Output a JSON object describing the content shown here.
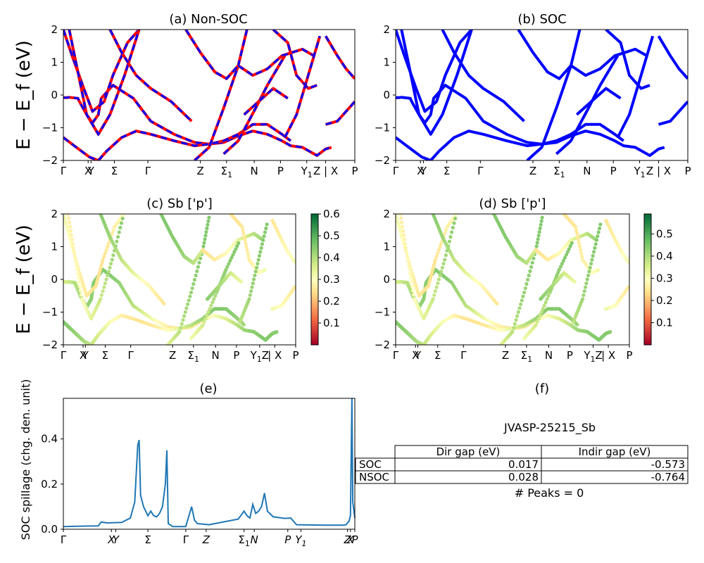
{
  "chart_data": [
    {
      "type": "line",
      "panel": "a",
      "title": "(a) Non-SOC",
      "ylabel": "E − E_f (eV)",
      "ylim": [
        -2,
        2
      ],
      "y_ticks": [
        "2",
        "1",
        "0",
        "−1",
        "−2"
      ],
      "x_ticks": [
        "Γ",
        "X",
        "Y",
        "Σ",
        "Γ",
        "Z",
        "Σ1",
        "N",
        "P",
        "Y1",
        "Z | X",
        "P"
      ],
      "series": [
        {
          "style": "red solid line overlaid with blue dashed line",
          "color": "#ff0000",
          "color2": "#0000ff"
        }
      ],
      "bands": [
        {
          "x": [
            0,
            0.012,
            0.02,
            0.05,
            0.055,
            0.08,
            0.1,
            0.12,
            0.13,
            0.17,
            0.24,
            0.3,
            0.38,
            0.45,
            0.5,
            0.55,
            0.6,
            0.65,
            0.7,
            0.75,
            0.78,
            0.82,
            0.87,
            0.9,
            0.92
          ],
          "y": [
            -0.08,
            -0.08,
            -0.07,
            -0.1,
            -0.2,
            -0.6,
            -0.85,
            -0.6,
            -0.1,
            0.3,
            -0.1,
            -0.8,
            -1.2,
            -1.45,
            -1.5,
            -1.45,
            -1.25,
            -1.1,
            -1.2,
            -1.4,
            -1.55,
            -1.6,
            -1.85,
            -1.65,
            -1.6
          ]
        },
        {
          "x": [
            0,
            0.03,
            0.06,
            0.09,
            0.12,
            0.15,
            0.2,
            0.25,
            0.3,
            0.38,
            0.45,
            0.5,
            0.55,
            0.6,
            0.65,
            0.7,
            0.75,
            0.78
          ],
          "y": [
            -1.3,
            -1.5,
            -1.7,
            -1.9,
            -2,
            -1.7,
            -1.3,
            -1.1,
            -1.2,
            -1.4,
            -1.55,
            -1.5,
            -1.4,
            -1.2,
            -0.9,
            -0.9,
            -1.2,
            -1.4
          ]
        },
        {
          "x": [
            0.0,
            0.03,
            0.07,
            0.1,
            0.14,
            0.17,
            0.22,
            0.26
          ],
          "y": [
            2,
            1.2,
            0.2,
            -0.5,
            -0.2,
            0.6,
            1.6,
            2
          ]
        },
        {
          "x": [
            0.02,
            0.05,
            0.08,
            0.12,
            0.16,
            0.21,
            0.26
          ],
          "y": [
            2,
            0.7,
            -0.6,
            -1.2,
            -0.6,
            0.6,
            2
          ]
        },
        {
          "x": [
            0.16,
            0.2,
            0.25,
            0.3,
            0.37,
            0.44
          ],
          "y": [
            2,
            1.3,
            0.6,
            0.2,
            -0.2,
            -0.8
          ]
        },
        {
          "x": [
            0.45,
            0.5,
            0.55,
            0.6,
            0.63
          ],
          "y": [
            -2,
            -1.6,
            -0.4,
            0.9,
            2
          ]
        },
        {
          "x": [
            0.42,
            0.47,
            0.52,
            0.56,
            0.6
          ],
          "y": [
            2,
            1.3,
            0.7,
            0.5,
            0.9
          ]
        },
        {
          "x": [
            0.6,
            0.65,
            0.7,
            0.75,
            0.82,
            0.86
          ],
          "y": [
            0.9,
            0.6,
            0.8,
            1.2,
            1.4,
            1.2
          ]
        },
        {
          "x": [
            0.55,
            0.6,
            0.66,
            0.7,
            0.76
          ],
          "y": [
            -1.8,
            -1.4,
            -0.4,
            0.3,
            1.2
          ]
        },
        {
          "x": [
            0.62,
            0.67,
            0.72,
            0.77
          ],
          "y": [
            -0.6,
            -0.2,
            0.2,
            -0.1
          ]
        },
        {
          "x": [
            0.72,
            0.77,
            0.8,
            0.84,
            0.87
          ],
          "y": [
            2,
            1.6,
            0.6,
            0.2,
            0.3
          ]
        },
        {
          "x": [
            0.76,
            0.8,
            0.84,
            0.88
          ],
          "y": [
            -1.3,
            -0.6,
            0.6,
            1.8
          ]
        },
        {
          "x": [
            0.9,
            0.94,
            0.97,
            1.0
          ],
          "y": [
            -0.9,
            -0.8,
            -0.5,
            -0.2
          ]
        },
        {
          "x": [
            0.9,
            0.94,
            0.97,
            1.0
          ],
          "y": [
            1.8,
            1.2,
            0.8,
            0.5
          ]
        }
      ]
    },
    {
      "type": "line",
      "panel": "b",
      "title": "(b) SOC",
      "ylim": [
        -2,
        2
      ],
      "y_ticks": [
        "2",
        "1",
        "0",
        "−1",
        "−2"
      ],
      "x_ticks": [
        "Γ",
        "X",
        "Y",
        "Σ",
        "Γ",
        "Z",
        "Σ1",
        "N",
        "P",
        "Y1",
        "Z | X",
        "P"
      ],
      "series": [
        {
          "style": "blue solid line",
          "color": "#0000ff"
        }
      ]
    },
    {
      "type": "scatter",
      "panel": "c",
      "title": "(c)  Sb ['p']",
      "ylabel": "E − E_f (eV)",
      "ylim": [
        -2,
        2
      ],
      "y_ticks": [
        "2",
        "1",
        "0",
        "−1",
        "−2"
      ],
      "x_ticks": [
        "Γ",
        "X",
        "Y",
        "Σ",
        "Γ",
        "Z",
        "Σ1",
        "N",
        "P",
        "Y1Z",
        "| X",
        "P"
      ],
      "colorbar": {
        "range": [
          0.0,
          0.6
        ],
        "ticks": [
          "0.6",
          "0.5",
          "0.4",
          "0.3",
          "0.2",
          "0.1"
        ],
        "colormap": "RdYlGn"
      }
    },
    {
      "type": "scatter",
      "panel": "d",
      "title": "(d) Sb ['p']",
      "ylim": [
        -2,
        2
      ],
      "y_ticks": [
        "2",
        "1",
        "0",
        "−1",
        "−2"
      ],
      "x_ticks": [
        "Γ",
        "X",
        "Y",
        "Σ",
        "Γ",
        "Z",
        "Σ1",
        "N",
        "P",
        "Y1Z",
        "| X",
        "P"
      ],
      "colorbar": {
        "range": [
          0.0,
          0.59
        ],
        "ticks": [
          "0.5",
          "0.4",
          "0.3",
          "0.2",
          "0.1"
        ],
        "colormap": "RdYlGn"
      }
    },
    {
      "type": "line",
      "panel": "e",
      "title": "(e)",
      "ylabel": "SOC spillage (chg. den. unit)",
      "ylim": [
        0,
        0.58
      ],
      "y_ticks": [
        "0.0",
        "0.2",
        "0.4"
      ],
      "x_ticks": [
        "Γ",
        "X",
        "Y",
        "Σ",
        "Γ",
        "Z",
        "Σ1",
        "N",
        "P",
        "Y1",
        "Z",
        "X",
        "P"
      ],
      "series": [
        {
          "color": "#1f77b4"
        }
      ],
      "x": [
        0,
        0.12,
        0.13,
        0.15,
        0.2,
        0.23,
        0.245,
        0.255,
        0.26,
        0.265,
        0.275,
        0.29,
        0.3,
        0.31,
        0.32,
        0.33,
        0.34,
        0.35,
        0.355,
        0.36,
        0.375,
        0.42,
        0.44,
        0.45,
        0.46,
        0.5,
        0.6,
        0.62,
        0.63,
        0.64,
        0.65,
        0.66,
        0.67,
        0.68,
        0.69,
        0.7,
        0.72,
        0.76,
        0.78,
        0.8,
        0.9,
        0.96,
        0.97,
        0.98,
        0.985,
        0.99,
        0.993,
        1.0
      ],
      "values": [
        0.012,
        0.015,
        0.032,
        0.028,
        0.03,
        0.05,
        0.12,
        0.37,
        0.395,
        0.15,
        0.1,
        0.06,
        0.08,
        0.06,
        0.055,
        0.07,
        0.1,
        0.2,
        0.35,
        0.025,
        0.012,
        0.012,
        0.1,
        0.04,
        0.025,
        0.02,
        0.045,
        0.08,
        0.06,
        0.05,
        0.11,
        0.07,
        0.08,
        0.1,
        0.16,
        0.08,
        0.055,
        0.048,
        0.05,
        0.02,
        0.018,
        0.018,
        0.02,
        0.035,
        0.06,
        0.58,
        0.12,
        0.05
      ]
    }
  ],
  "info": {
    "title": "(f)",
    "material_id": "JVASP-25215_Sb",
    "table": {
      "headers": [
        "",
        "Dir gap (eV)",
        "Indir gap (eV)"
      ],
      "rows": [
        [
          "SOC",
          "0.017",
          "-0.573"
        ],
        [
          "NSOC",
          "0.028",
          "-0.764"
        ]
      ]
    },
    "peaks_text": "# Peaks = 0"
  }
}
